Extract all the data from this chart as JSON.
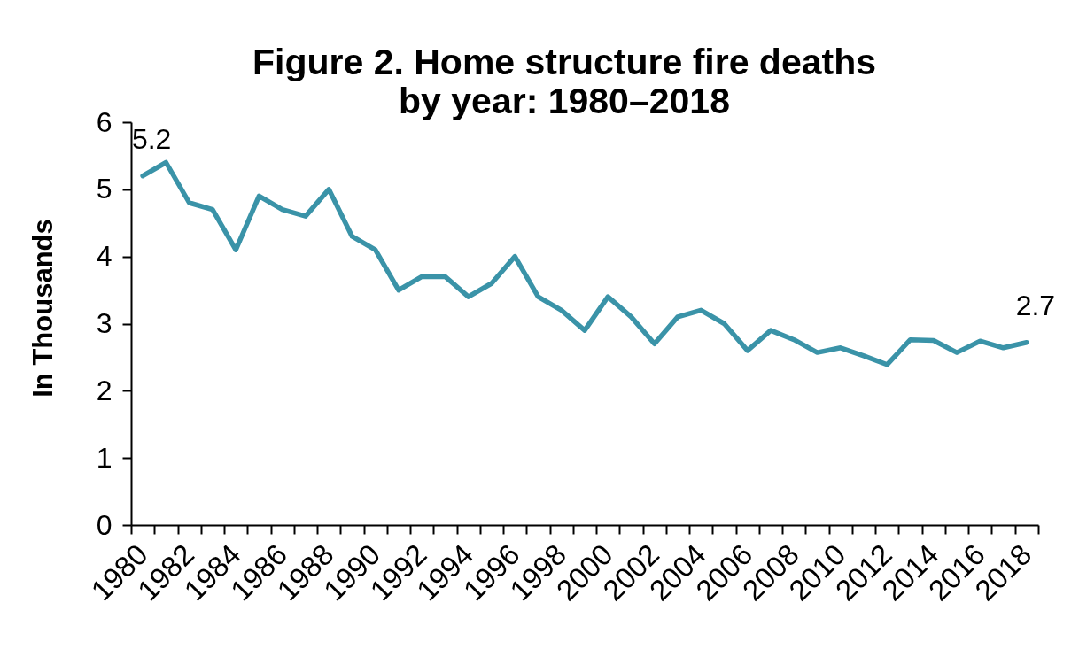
{
  "chart_data": {
    "type": "line",
    "title": "Figure 2. Home structure fire deaths by year: 1980–2018",
    "ylabel": "In Thousands",
    "categories": [
      "1980",
      null,
      "1982",
      null,
      "1984",
      null,
      "1986",
      null,
      "1988",
      null,
      "1990",
      null,
      "1992",
      null,
      "1994",
      null,
      "1996",
      null,
      "1998",
      null,
      "2000",
      null,
      "2002",
      null,
      "2004",
      null,
      "2006",
      null,
      "2008",
      null,
      "2010",
      null,
      "2012",
      null,
      "2014",
      null,
      "2016",
      null,
      "2018"
    ],
    "values": [
      5.2,
      5.4,
      4.8,
      4.7,
      4.1,
      4.9,
      4.7,
      4.6,
      5.0,
      4.3,
      4.1,
      3.5,
      3.7,
      3.7,
      3.4,
      3.6,
      4.0,
      3.4,
      3.2,
      2.9,
      3.4,
      3.1,
      2.7,
      3.1,
      3.2,
      3.0,
      2.6,
      2.9,
      2.76,
      2.57,
      2.64,
      2.52,
      2.39,
      2.76,
      2.75,
      2.57,
      2.74,
      2.64,
      2.72
    ],
    "value_labels": [
      "5.2",
      null,
      null,
      null,
      null,
      null,
      null,
      null,
      null,
      null,
      null,
      null,
      null,
      null,
      null,
      null,
      null,
      null,
      null,
      null,
      null,
      null,
      null,
      null,
      null,
      null,
      null,
      null,
      null,
      null,
      null,
      null,
      null,
      null,
      null,
      null,
      null,
      null,
      "2.7"
    ],
    "color": "#3a93a8",
    "ylim": [
      0,
      6
    ],
    "yticks": [
      0,
      1,
      2,
      3,
      4,
      5,
      6
    ]
  }
}
